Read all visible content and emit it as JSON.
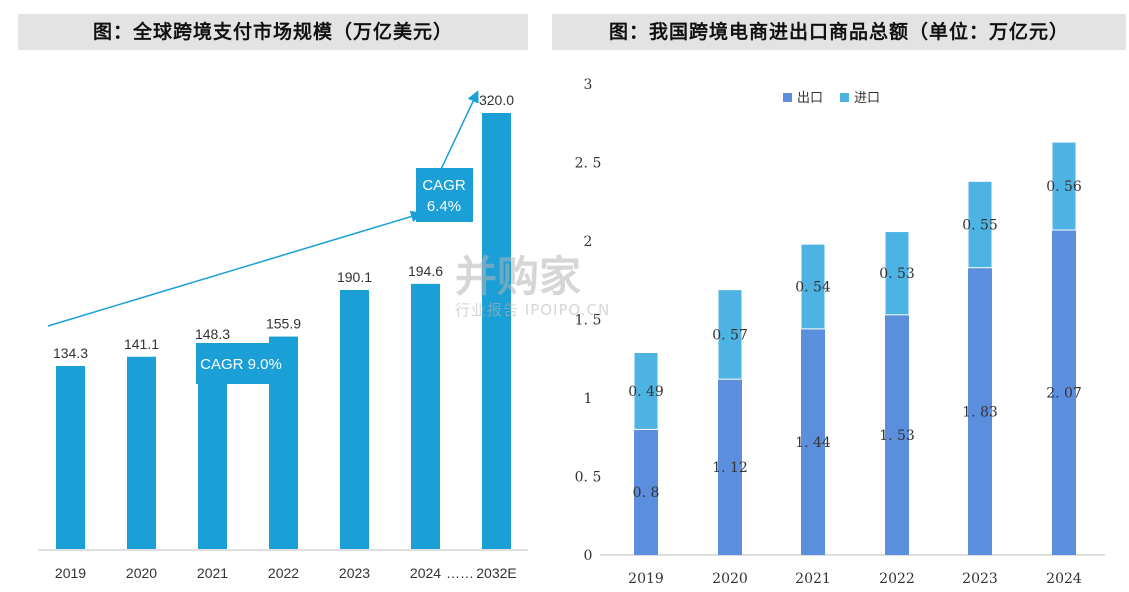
{
  "left_title": "图：全球跨境支付市场规模（万亿美元）",
  "right_title": "图：我国跨境电商进出口商品总额（单位：万亿元）",
  "watermark": {
    "brand": "并购家",
    "tagline": "行业报告 IPOIPO.CN"
  },
  "colors": {
    "bar1": "#1a9fd6",
    "export": "#5b8fde",
    "import": "#4db3e2",
    "grid_axis": "#bfbfbf"
  },
  "chart_data": [
    {
      "type": "bar",
      "categories": [
        "2019",
        "2020",
        "2021",
        "2022",
        "2023",
        "2024",
        "2032E"
      ],
      "separator_label": "……",
      "values": [
        134.3,
        141.1,
        148.3,
        155.9,
        190.1,
        194.6,
        320.0
      ],
      "value_labels": [
        "134.3",
        "141.1",
        "148.3",
        "155.9",
        "190.1",
        "194.6",
        "320.0"
      ],
      "ylim": [
        0,
        320
      ],
      "annotations": [
        "CAGR 9.0%",
        "CAGR\n6.4%"
      ]
    },
    {
      "type": "bar",
      "stacked": true,
      "categories": [
        "2019",
        "2020",
        "2021",
        "2022",
        "2023",
        "2024"
      ],
      "series": [
        {
          "name": "出口",
          "values": [
            0.8,
            1.12,
            1.44,
            1.53,
            1.83,
            2.07
          ],
          "labels": [
            "0. 8",
            "1. 12",
            "1. 44",
            "1. 53",
            "1. 83",
            "2. 07"
          ]
        },
        {
          "name": "进口",
          "values": [
            0.49,
            0.57,
            0.54,
            0.53,
            0.55,
            0.56
          ],
          "labels": [
            "0. 49",
            "0. 57",
            "0. 54",
            "0. 53",
            "0. 55",
            "0. 56"
          ]
        }
      ],
      "yticks": [
        "0",
        "0. 5",
        "1",
        "1. 5",
        "2",
        "2. 5",
        "3"
      ],
      "ylim": [
        0,
        3
      ],
      "legend": "top-center"
    }
  ]
}
